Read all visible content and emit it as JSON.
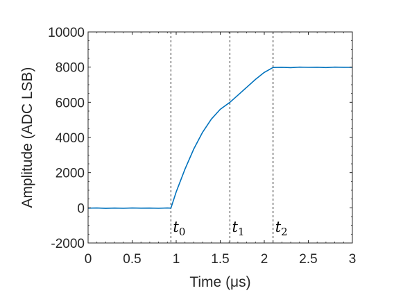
{
  "chart_data": {
    "type": "line",
    "xlabel": "Time (μs)",
    "ylabel": "Amplitude (ADC LSB)",
    "xlim": [
      0,
      3
    ],
    "ylim": [
      -2000,
      10000
    ],
    "xticks": [
      0,
      0.5,
      1,
      1.5,
      2,
      2.5,
      3
    ],
    "xtick_labels": [
      "0",
      "0.5",
      "1",
      "1.5",
      "2",
      "2.5",
      "3"
    ],
    "yticks": [
      -2000,
      0,
      2000,
      4000,
      6000,
      8000,
      10000
    ],
    "ytick_labels": [
      "-2000",
      "0",
      "2000",
      "4000",
      "6000",
      "8000",
      "10000"
    ],
    "grid": false,
    "line_color": "#0072BD",
    "vlines": [
      {
        "x": 0.94,
        "label_base": "t",
        "label_sub": "0"
      },
      {
        "x": 1.61,
        "label_base": "t",
        "label_sub": "1"
      },
      {
        "x": 2.1,
        "label_base": "t",
        "label_sub": "2"
      }
    ],
    "series": [
      {
        "x": [
          0,
          0.1,
          0.2,
          0.3,
          0.4,
          0.5,
          0.6,
          0.7,
          0.8,
          0.9,
          0.94,
          1.0,
          1.1,
          1.2,
          1.3,
          1.4,
          1.5,
          1.61,
          1.7,
          1.8,
          1.9,
          2.0,
          2.1,
          2.2,
          2.3,
          2.4,
          2.5,
          2.6,
          2.7,
          2.8,
          2.9,
          3.0
        ],
        "y": [
          -20,
          -10,
          -30,
          -15,
          -25,
          -10,
          -20,
          -15,
          -25,
          -10,
          -20,
          900,
          2200,
          3350,
          4300,
          5050,
          5600,
          6000,
          6400,
          6850,
          7300,
          7700,
          7980,
          7990,
          7970,
          8000,
          7985,
          7995,
          7975,
          8000,
          7990,
          7985
        ]
      }
    ]
  }
}
